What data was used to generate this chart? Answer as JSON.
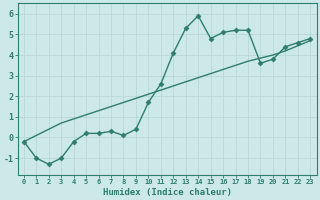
{
  "x": [
    0,
    1,
    2,
    3,
    4,
    5,
    6,
    7,
    8,
    9,
    10,
    11,
    12,
    13,
    14,
    15,
    16,
    17,
    18,
    19,
    20,
    21,
    22,
    23
  ],
  "y_curve": [
    -0.2,
    -1.0,
    -1.3,
    -1.0,
    -0.2,
    0.2,
    0.2,
    0.3,
    0.1,
    0.4,
    1.7,
    2.6,
    4.1,
    5.3,
    5.9,
    4.8,
    5.1,
    5.2,
    5.2,
    3.6,
    3.8,
    4.4,
    4.6,
    4.8
  ],
  "y_line": [
    -0.2,
    0.1,
    0.4,
    0.7,
    0.9,
    1.1,
    1.3,
    1.5,
    1.7,
    1.9,
    2.1,
    2.3,
    2.5,
    2.7,
    2.9,
    3.1,
    3.3,
    3.5,
    3.7,
    3.85,
    4.0,
    4.2,
    4.45,
    4.7
  ],
  "color": "#2e7d6e",
  "bg_color": "#cce8e8",
  "grid_color": "#b8d8d8",
  "xlabel": "Humidex (Indice chaleur)",
  "ylim": [
    -1.8,
    6.5
  ],
  "xlim": [
    -0.5,
    23.5
  ],
  "yticks": [
    -1,
    0,
    1,
    2,
    3,
    4,
    5,
    6
  ],
  "xticks": [
    0,
    1,
    2,
    3,
    4,
    5,
    6,
    7,
    8,
    9,
    10,
    11,
    12,
    13,
    14,
    15,
    16,
    17,
    18,
    19,
    20,
    21,
    22,
    23
  ],
  "marker": "D",
  "marker_size": 2.5,
  "line_width": 1.0
}
